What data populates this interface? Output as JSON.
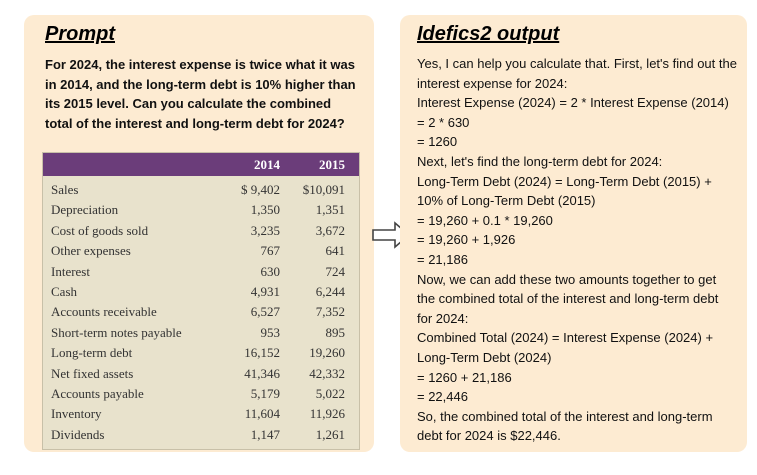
{
  "left": {
    "title": "Prompt",
    "prompt": "For 2024, the interest expense is twice what it was in 2014, and the long-term debt is 10% higher than its 2015 level. Can you calculate the combined total of the interest and long-term debt for 2024?",
    "table": {
      "headers": [
        "2014",
        "2015"
      ],
      "rows": [
        {
          "label": "Sales",
          "y2014": "$ 9,402",
          "y2015": "$10,091"
        },
        {
          "label": "Depreciation",
          "y2014": "1,350",
          "y2015": "1,351"
        },
        {
          "label": "Cost of goods sold",
          "y2014": "3,235",
          "y2015": "3,672"
        },
        {
          "label": "Other expenses",
          "y2014": "767",
          "y2015": "641"
        },
        {
          "label": "Interest",
          "y2014": "630",
          "y2015": "724"
        },
        {
          "label": "Cash",
          "y2014": "4,931",
          "y2015": "6,244"
        },
        {
          "label": "Accounts receivable",
          "y2014": "6,527",
          "y2015": "7,352"
        },
        {
          "label": "Short-term notes payable",
          "y2014": "953",
          "y2015": "895"
        },
        {
          "label": "Long-term debt",
          "y2014": "16,152",
          "y2015": "19,260"
        },
        {
          "label": "Net fixed assets",
          "y2014": "41,346",
          "y2015": "42,332"
        },
        {
          "label": "Accounts payable",
          "y2014": "5,179",
          "y2015": "5,022"
        },
        {
          "label": "Inventory",
          "y2014": "11,604",
          "y2015": "11,926"
        },
        {
          "label": "Dividends",
          "y2014": "1,147",
          "y2015": "1,261"
        }
      ]
    }
  },
  "right": {
    "title": "Idefics2 output",
    "lines": [
      "Yes, I can help you calculate that. First, let's find out the interest expense for 2024:",
      "Interest Expense (2024) = 2 * Interest Expense (2014) = 2 * 630",
      "= 1260",
      "Next, let's find the long-term debt for 2024:",
      "Long-Term Debt (2024) = Long-Term Debt (2015) + 10% of Long-Term Debt (2015)",
      "= 19,260 + 0.1 * 19,260",
      "= 19,260 + 1,926",
      "= 21,186",
      "Now, we can add these two amounts together to get the combined total of the interest and long-term debt for 2024:",
      "Combined Total (2024) = Interest Expense (2024) + Long-Term Debt (2024)",
      "= 1260 + 21,186",
      "= 22,446",
      "So, the combined total of the interest and long-term debt for 2024 is $22,446."
    ]
  },
  "colors": {
    "panel_bg": "#fdebd2",
    "table_header": "#6b3d7a",
    "table_bg": "#e8e2cc"
  },
  "icons": {
    "arrow": "right-arrow-icon"
  }
}
